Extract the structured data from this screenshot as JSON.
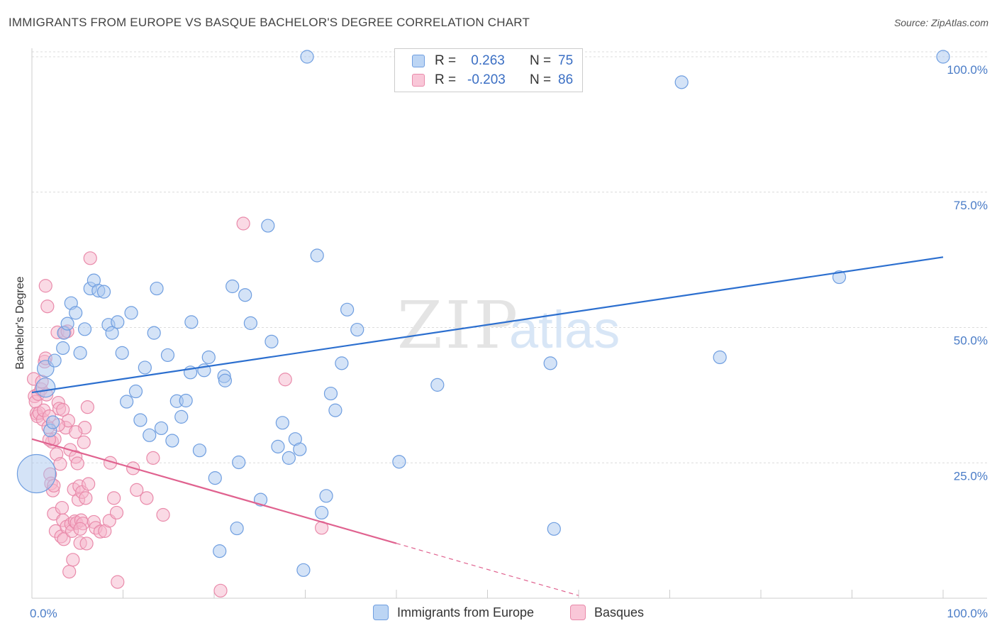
{
  "title": "IMMIGRANTS FROM EUROPE VS BASQUE BACHELOR'S DEGREE CORRELATION CHART",
  "source": "Source: ZipAtlas.com",
  "watermark": {
    "zip": "ZIP",
    "atlas": "atlas"
  },
  "colors": {
    "blue_fill": "#a9c8f0",
    "blue_stroke": "#6f9ee0",
    "blue_line": "#2c6fcf",
    "pink_fill": "#f6b6cb",
    "pink_stroke": "#e98aaa",
    "pink_line": "#e0628f",
    "grid": "#dcdcdc",
    "axis_text": "#4a7cc7"
  },
  "legend": {
    "rows": [
      {
        "r_label": "R = ",
        "r_value": " 0.263",
        "n_label": "N = ",
        "n_value": "75"
      },
      {
        "r_label": "R = ",
        "r_value": "-0.203",
        "n_label": "N = ",
        "n_value": "86"
      }
    ]
  },
  "bottom_legend": {
    "blue": "Immigrants from Europe",
    "pink": "Basques"
  },
  "chart_data": {
    "type": "scatter",
    "title": "IMMIGRANTS FROM EUROPE VS BASQUE BACHELOR'S DEGREE CORRELATION CHART",
    "xlabel": "",
    "ylabel": "Bachelor's Degree",
    "xlim": [
      0,
      100
    ],
    "ylim": [
      0,
      100
    ],
    "x_tick_labels": [
      "0.0%",
      "100.0%"
    ],
    "y_ticks": [
      {
        "value": 25,
        "label": "25.0%"
      },
      {
        "value": 50,
        "label": "50.0%"
      },
      {
        "value": 75,
        "label": "75.0%"
      },
      {
        "value": 100,
        "label": "100.0%"
      }
    ],
    "grid": true,
    "series": [
      {
        "name": "Immigrants from Europe",
        "r": 0.263,
        "n": 75,
        "trend": {
          "x0": 0,
          "y0": 38.0,
          "x1": 100,
          "y1": 63.0,
          "dashed_from": null
        },
        "points": [
          [
            0.5,
            23,
            3
          ],
          [
            1.5,
            38.9,
            1.5
          ],
          [
            1.5,
            42.4,
            1.3
          ],
          [
            2.0,
            31.0,
            1
          ],
          [
            2.3,
            32.5,
            1
          ],
          [
            2.5,
            43.9,
            1
          ],
          [
            3.4,
            46.2,
            1
          ],
          [
            3.5,
            49.0,
            1
          ],
          [
            3.9,
            50.7,
            1
          ],
          [
            4.3,
            54.5,
            1
          ],
          [
            4.8,
            52.7,
            1
          ],
          [
            5.3,
            45.3,
            1
          ],
          [
            5.8,
            49.7,
            1
          ],
          [
            6.4,
            57.2,
            1
          ],
          [
            6.8,
            58.7,
            1
          ],
          [
            7.3,
            56.8,
            1
          ],
          [
            7.9,
            56.6,
            1
          ],
          [
            8.4,
            50.5,
            1
          ],
          [
            8.8,
            49.0,
            1
          ],
          [
            9.4,
            51.0,
            1
          ],
          [
            9.9,
            45.3,
            1
          ],
          [
            10.4,
            36.3,
            1
          ],
          [
            10.9,
            52.7,
            1
          ],
          [
            11.4,
            38.2,
            1
          ],
          [
            11.9,
            32.9,
            1
          ],
          [
            12.4,
            42.6,
            1
          ],
          [
            12.9,
            30.1,
            1
          ],
          [
            13.4,
            49.0,
            1
          ],
          [
            13.7,
            57.2,
            1
          ],
          [
            14.2,
            31.4,
            1
          ],
          [
            14.9,
            44.9,
            1
          ],
          [
            15.4,
            29.1,
            1
          ],
          [
            15.9,
            36.4,
            1
          ],
          [
            16.4,
            33.5,
            1
          ],
          [
            16.9,
            36.5,
            1
          ],
          [
            17.4,
            41.7,
            1
          ],
          [
            17.5,
            51.0,
            1
          ],
          [
            18.4,
            27.3,
            1
          ],
          [
            18.9,
            42.1,
            1
          ],
          [
            19.4,
            44.5,
            1
          ],
          [
            20.1,
            22.2,
            1
          ],
          [
            20.6,
            8.7,
            1
          ],
          [
            21.1,
            41.0,
            1
          ],
          [
            21.2,
            40.2,
            1
          ],
          [
            22.0,
            57.6,
            1
          ],
          [
            22.5,
            12.9,
            1
          ],
          [
            22.7,
            25.1,
            1
          ],
          [
            23.4,
            56.0,
            1
          ],
          [
            24.0,
            50.8,
            1
          ],
          [
            25.1,
            18.2,
            1
          ],
          [
            25.9,
            68.8,
            1
          ],
          [
            26.3,
            47.4,
            1
          ],
          [
            27.0,
            28.0,
            1
          ],
          [
            27.5,
            32.4,
            1
          ],
          [
            28.2,
            25.9,
            1
          ],
          [
            28.9,
            29.4,
            1
          ],
          [
            29.4,
            27.5,
            1
          ],
          [
            29.8,
            5.2,
            1
          ],
          [
            30.2,
            100,
            1
          ],
          [
            31.3,
            63.3,
            1
          ],
          [
            31.8,
            15.8,
            1
          ],
          [
            32.3,
            18.9,
            1
          ],
          [
            32.8,
            37.8,
            1
          ],
          [
            33.3,
            34.7,
            1
          ],
          [
            34.0,
            43.4,
            1
          ],
          [
            34.6,
            53.3,
            1
          ],
          [
            35.7,
            49.6,
            1
          ],
          [
            40.3,
            25.2,
            1
          ],
          [
            44.5,
            39.4,
            1
          ],
          [
            56.9,
            43.4,
            1
          ],
          [
            57.3,
            12.8,
            1
          ],
          [
            71.3,
            95.3,
            1
          ],
          [
            75.5,
            44.5,
            1
          ],
          [
            88.6,
            59.3,
            1
          ],
          [
            100,
            100,
            1
          ]
        ]
      },
      {
        "name": "Basques",
        "r": -0.203,
        "n": 86,
        "trend": {
          "x0": 0,
          "y0": 29.4,
          "x1": 60,
          "y1": 0.5,
          "dashed_from": 40
        },
        "points": [
          [
            0.2,
            40.5,
            1
          ],
          [
            0.3,
            37.3,
            1
          ],
          [
            0.4,
            36.3,
            1
          ],
          [
            0.5,
            34.1,
            1
          ],
          [
            0.6,
            33.6,
            1
          ],
          [
            0.7,
            37.7,
            1
          ],
          [
            0.8,
            34.2,
            1
          ],
          [
            1.0,
            38.6,
            1
          ],
          [
            1.1,
            40.0,
            1
          ],
          [
            1.2,
            33.0,
            1
          ],
          [
            1.3,
            34.7,
            1
          ],
          [
            1.4,
            43.7,
            1
          ],
          [
            1.5,
            44.3,
            1
          ],
          [
            1.5,
            57.7,
            1
          ],
          [
            1.6,
            37.6,
            1
          ],
          [
            1.7,
            53.9,
            1
          ],
          [
            1.8,
            31.6,
            1
          ],
          [
            1.9,
            33.6,
            1
          ],
          [
            2.0,
            22.9,
            1
          ],
          [
            2.1,
            21.2,
            1
          ],
          [
            2.2,
            28.9,
            1
          ],
          [
            2.3,
            19.9,
            1
          ],
          [
            2.4,
            15.6,
            1
          ],
          [
            2.5,
            29.4,
            1
          ],
          [
            2.6,
            12.4,
            1
          ],
          [
            2.7,
            26.6,
            1
          ],
          [
            2.8,
            49.1,
            1
          ],
          [
            2.9,
            36.1,
            1
          ],
          [
            3.0,
            35.0,
            1
          ],
          [
            3.1,
            24.8,
            1
          ],
          [
            3.2,
            11.4,
            1
          ],
          [
            3.3,
            16.7,
            1
          ],
          [
            3.4,
            14.4,
            1
          ],
          [
            3.5,
            10.9,
            1
          ],
          [
            3.6,
            49.1,
            1
          ],
          [
            3.7,
            31.5,
            1
          ],
          [
            3.8,
            13.2,
            1
          ],
          [
            3.9,
            49.3,
            1
          ],
          [
            4.0,
            32.8,
            1
          ],
          [
            4.1,
            4.9,
            1
          ],
          [
            4.2,
            27.4,
            1
          ],
          [
            4.3,
            13.7,
            1
          ],
          [
            4.4,
            12.4,
            1
          ],
          [
            4.5,
            7.1,
            1
          ],
          [
            4.6,
            20.1,
            1
          ],
          [
            4.7,
            14.2,
            1
          ],
          [
            4.8,
            26.1,
            1
          ],
          [
            4.9,
            13.9,
            1
          ],
          [
            5.0,
            24.9,
            1
          ],
          [
            5.1,
            18.2,
            1
          ],
          [
            5.2,
            20.7,
            1
          ],
          [
            5.3,
            10.2,
            1
          ],
          [
            5.4,
            14.4,
            1
          ],
          [
            5.5,
            19.6,
            1
          ],
          [
            5.6,
            13.8,
            1
          ],
          [
            5.7,
            28.8,
            1
          ],
          [
            5.8,
            31.5,
            1
          ],
          [
            5.9,
            18.5,
            1
          ],
          [
            6.0,
            10.1,
            1
          ],
          [
            6.1,
            35.3,
            1
          ],
          [
            6.2,
            21.1,
            1
          ],
          [
            6.4,
            62.8,
            1
          ],
          [
            6.8,
            14.1,
            1
          ],
          [
            7.0,
            13.0,
            1
          ],
          [
            7.5,
            12.3,
            1
          ],
          [
            8.0,
            12.4,
            1
          ],
          [
            8.5,
            14.3,
            1
          ],
          [
            8.6,
            25.0,
            1
          ],
          [
            9.0,
            18.5,
            1
          ],
          [
            9.3,
            15.8,
            1
          ],
          [
            9.4,
            3.0,
            1
          ],
          [
            11.1,
            24.0,
            1
          ],
          [
            11.5,
            20.0,
            1
          ],
          [
            12.6,
            18.5,
            1
          ],
          [
            13.3,
            25.9,
            1
          ],
          [
            14.4,
            15.4,
            1
          ],
          [
            20.7,
            1.4,
            1
          ],
          [
            23.2,
            69.2,
            1
          ],
          [
            27.8,
            40.4,
            1
          ],
          [
            31.8,
            13.0,
            1
          ],
          [
            1.9,
            29.3,
            1
          ],
          [
            2.4,
            20.8,
            1
          ],
          [
            2.9,
            32.0,
            1
          ],
          [
            3.4,
            34.8,
            1
          ],
          [
            4.8,
            30.7,
            1
          ],
          [
            5.3,
            12.8,
            1
          ]
        ]
      }
    ]
  }
}
